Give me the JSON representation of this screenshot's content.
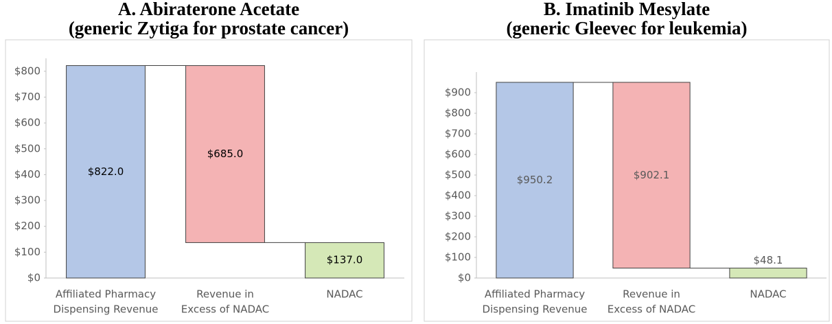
{
  "chart_data": [
    {
      "type": "waterfall",
      "title": "A. Abiraterone Acetate",
      "subtitle": "(generic Zytiga for prostate cancer)",
      "categories": [
        [
          "Affiliated Pharmacy",
          "Dispensing Revenue"
        ],
        [
          "Revenue in",
          "Excess of NADAC"
        ],
        [
          "NADAC"
        ]
      ],
      "values": [
        822.0,
        685.0,
        137.0
      ],
      "value_labels": [
        "$822.0",
        "$685.0",
        "$137.0"
      ],
      "colors": [
        "#b4c7e7",
        "#f4b3b4",
        "#d5e8b7"
      ],
      "label_color": "#000000",
      "ylim": [
        0,
        850
      ],
      "yticks": [
        {
          "value": 0,
          "label": "$0"
        },
        {
          "value": 100,
          "label": "$100"
        },
        {
          "value": 200,
          "label": "$200"
        },
        {
          "value": 300,
          "label": "$300"
        },
        {
          "value": 400,
          "label": "$400"
        },
        {
          "value": 500,
          "label": "$500"
        },
        {
          "value": 600,
          "label": "$600"
        },
        {
          "value": 700,
          "label": "$700"
        },
        {
          "value": 800,
          "label": "$800"
        }
      ]
    },
    {
      "type": "waterfall",
      "title": "B. Imatinib Mesylate",
      "subtitle": "(generic Gleevec for leukemia)",
      "categories": [
        [
          "Affiliated Pharmacy",
          "Dispensing Revenue"
        ],
        [
          "Revenue in",
          "Excess of NADAC"
        ],
        [
          "NADAC"
        ]
      ],
      "values": [
        950.2,
        902.1,
        48.1
      ],
      "value_labels": [
        "$950.2",
        "$902.1",
        "$48.1"
      ],
      "colors": [
        "#b4c7e7",
        "#f4b3b4",
        "#d5e8b7"
      ],
      "label_color": "#595959",
      "ylim": [
        0,
        1000
      ],
      "yticks": [
        {
          "value": 0,
          "label": "$0"
        },
        {
          "value": 100,
          "label": "$100"
        },
        {
          "value": 200,
          "label": "$200"
        },
        {
          "value": 300,
          "label": "$300"
        },
        {
          "value": 400,
          "label": "$400"
        },
        {
          "value": 500,
          "label": "$500"
        },
        {
          "value": 600,
          "label": "$600"
        },
        {
          "value": 700,
          "label": "$700"
        },
        {
          "value": 800,
          "label": "$800"
        },
        {
          "value": 900,
          "label": "$900"
        }
      ]
    }
  ]
}
